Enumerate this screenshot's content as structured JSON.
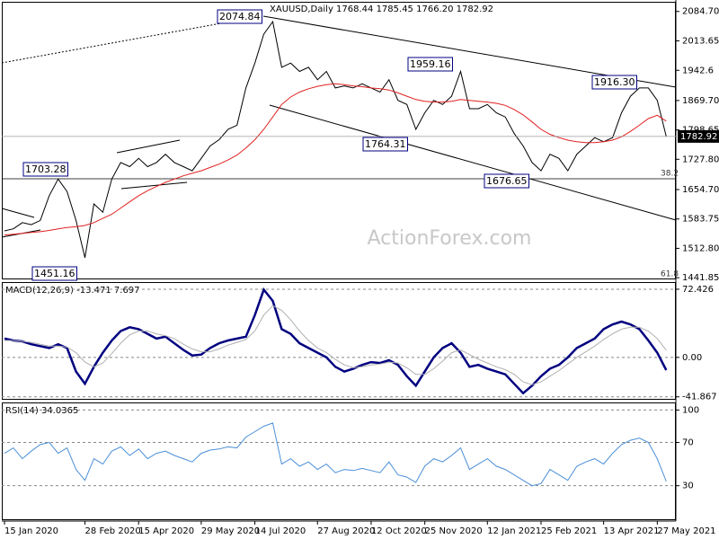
{
  "chart_data": [
    {
      "type": "line",
      "title": "XAUUSD,Daily 1768.44 1785.45 1766.20 1782.92",
      "watermark": "ActionForex.com",
      "last_price": "1782.92",
      "annotations": [
        "2074.84",
        "1703.28",
        "1451.16",
        "1959.16",
        "1764.31",
        "1676.65",
        "1916.30",
        "38.2",
        "61.8"
      ],
      "categories": [
        "15 Jan 2020",
        null,
        null,
        null,
        null,
        null,
        null,
        null,
        null,
        "28 Feb 2020",
        null,
        null,
        null,
        null,
        null,
        "15 Apr 2020",
        null,
        null,
        null,
        null,
        null,
        null,
        "29 May 2020",
        null,
        null,
        null,
        null,
        null,
        "14 Jul 2020",
        null,
        null,
        null,
        null,
        null,
        null,
        "27 Aug 2020",
        null,
        null,
        null,
        null,
        null,
        "12 Oct 2020",
        null,
        null,
        null,
        null,
        null,
        "25 Nov 2020",
        null,
        null,
        null,
        null,
        null,
        null,
        "12 Jan 2021",
        null,
        null,
        null,
        null,
        null,
        "25 Feb 2021",
        null,
        null,
        null,
        null,
        null,
        null,
        "13 Apr 2021",
        null,
        null,
        null,
        null,
        null,
        "27 May 2021",
        null
      ],
      "series": [
        {
          "color": "#000000",
          "values": [
            1555,
            1560,
            1575,
            1570,
            1580,
            1640,
            1680,
            1650,
            1580,
            1490,
            1620,
            1600,
            1680,
            1720,
            1710,
            1730,
            1710,
            1720,
            1740,
            1720,
            1710,
            1700,
            1730,
            1760,
            1775,
            1800,
            1810,
            1900,
            1960,
            2030,
            2060,
            1950,
            1960,
            1940,
            1950,
            1920,
            1940,
            1900,
            1905,
            1900,
            1910,
            1900,
            1890,
            1920,
            1870,
            1860,
            1800,
            1840,
            1870,
            1860,
            1880,
            1940,
            1850,
            1850,
            1860,
            1840,
            1830,
            1790,
            1760,
            1720,
            1700,
            1740,
            1730,
            1700,
            1740,
            1760,
            1780,
            1770,
            1780,
            1840,
            1880,
            1900,
            1900,
            1870,
            1782.92
          ]
        },
        {
          "color": "#e02020",
          "values": [
            1545,
            1547,
            1549,
            1551,
            1553,
            1556,
            1560,
            1563,
            1565,
            1568,
            1575,
            1585,
            1595,
            1610,
            1625,
            1640,
            1652,
            1662,
            1672,
            1680,
            1688,
            1694,
            1700,
            1708,
            1716,
            1726,
            1738,
            1755,
            1775,
            1800,
            1830,
            1860,
            1878,
            1890,
            1898,
            1904,
            1908,
            1910,
            1908,
            1905,
            1903,
            1900,
            1898,
            1895,
            1888,
            1880,
            1872,
            1868,
            1866,
            1866,
            1868,
            1872,
            1870,
            1868,
            1866,
            1863,
            1858,
            1848,
            1835,
            1818,
            1800,
            1788,
            1780,
            1774,
            1770,
            1768,
            1768,
            1770,
            1774,
            1782,
            1795,
            1810,
            1826,
            1834,
            1820
          ]
        }
      ],
      "ylim": [
        1440,
        2108
      ],
      "yticks": [
        {
          "value": 2084.7,
          "label": "2084.70"
        },
        2013.65,
        1942.6,
        {
          "value": 1869.7,
          "label": "1869.70"
        },
        1798.65,
        {
          "value": 1727.8,
          "label": "1727.80"
        },
        {
          "value": 1654.7,
          "label": "1654.70"
        },
        1583.75,
        {
          "value": 1512.8,
          "label": "1512.80"
        },
        1441.85
      ],
      "grid": false
    },
    {
      "type": "line",
      "title": "MACD(12,26,9) -13.471 7.697",
      "series": [
        {
          "color": "#000080",
          "values": [
            20,
            18,
            17,
            14,
            12,
            10,
            14,
            10,
            -15,
            -28,
            -10,
            5,
            18,
            28,
            32,
            30,
            25,
            20,
            22,
            15,
            8,
            2,
            3,
            10,
            15,
            18,
            20,
            22,
            45,
            72,
            60,
            30,
            25,
            15,
            10,
            5,
            0,
            -10,
            -15,
            -12,
            -8,
            -5,
            -6,
            -3,
            -8,
            -20,
            -30,
            -15,
            0,
            10,
            15,
            5,
            -10,
            -8,
            -12,
            -15,
            -18,
            -28,
            -38,
            -30,
            -20,
            -12,
            -8,
            0,
            10,
            15,
            20,
            30,
            35,
            38,
            35,
            30,
            18,
            5,
            -13.471
          ]
        },
        {
          "color": "#b0b0b0",
          "values": [
            18,
            18,
            17,
            16,
            14,
            12,
            12,
            11,
            5,
            -5,
            -10,
            -6,
            4,
            15,
            24,
            28,
            28,
            25,
            23,
            20,
            14,
            9,
            6,
            6,
            9,
            13,
            16,
            19,
            28,
            45,
            55,
            50,
            40,
            28,
            18,
            10,
            5,
            -2,
            -8,
            -11,
            -10,
            -8,
            -7,
            -5,
            -6,
            -11,
            -18,
            -18,
            -12,
            -4,
            5,
            8,
            3,
            -2,
            -6,
            -10,
            -13,
            -18,
            -26,
            -29,
            -26,
            -20,
            -14,
            -7,
            0,
            6,
            12,
            19,
            25,
            30,
            32,
            32,
            28,
            20,
            7.697
          ]
        }
      ],
      "ylim": [
        -45,
        80
      ],
      "yticks": [
        72.426,
        {
          "value": 0,
          "label": "0.00"
        },
        -41.867
      ],
      "grid": true
    },
    {
      "type": "line",
      "title": "RSI(14) 34.0365",
      "series": [
        {
          "color": "#4a8fd8",
          "values": [
            60,
            65,
            55,
            62,
            68,
            70,
            60,
            65,
            45,
            35,
            55,
            50,
            62,
            66,
            58,
            64,
            55,
            60,
            62,
            58,
            55,
            52,
            60,
            63,
            64,
            66,
            65,
            75,
            80,
            85,
            88,
            50,
            55,
            48,
            52,
            45,
            50,
            42,
            45,
            44,
            46,
            44,
            42,
            52,
            40,
            38,
            33,
            48,
            55,
            52,
            58,
            65,
            45,
            50,
            55,
            48,
            45,
            40,
            35,
            30,
            32,
            45,
            40,
            35,
            48,
            52,
            55,
            50,
            60,
            68,
            72,
            74,
            70,
            55,
            34.0365
          ]
        }
      ],
      "ylim": [
        -1,
        107
      ],
      "yticks": [
        100,
        70,
        30
      ],
      "grid": true
    }
  ]
}
